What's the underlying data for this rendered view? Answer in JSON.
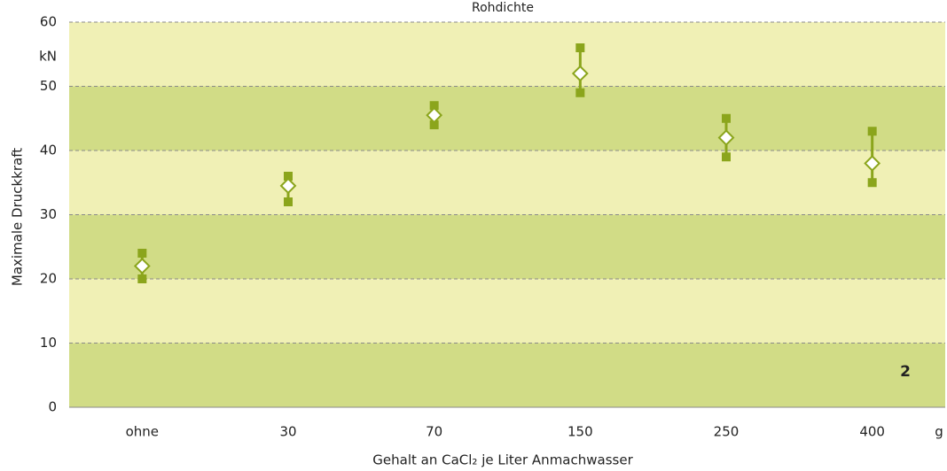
{
  "chart_data": {
    "type": "range",
    "title": "Rohdichte",
    "y_label": "Maximale Druckkraft",
    "y_unit": "kN",
    "x_label": "Gehalt an CaCl₂ je Liter Anmachwasser",
    "x_unit": "g",
    "annotation": "2",
    "categories": [
      "ohne",
      "30",
      "70",
      "150",
      "250",
      "400"
    ],
    "means": [
      22,
      34.5,
      45.5,
      52,
      42,
      38
    ],
    "mins": [
      20,
      32,
      44,
      49,
      39,
      35
    ],
    "maxs": [
      24,
      36,
      47,
      56,
      45,
      43
    ],
    "color": "#8ba51c",
    "band_colors": [
      "#d1dc86",
      "#f0f0b5"
    ],
    "ylim": [
      0,
      60
    ],
    "yticks": [
      0,
      10,
      20,
      30,
      40,
      50,
      60
    ],
    "grid": true
  }
}
